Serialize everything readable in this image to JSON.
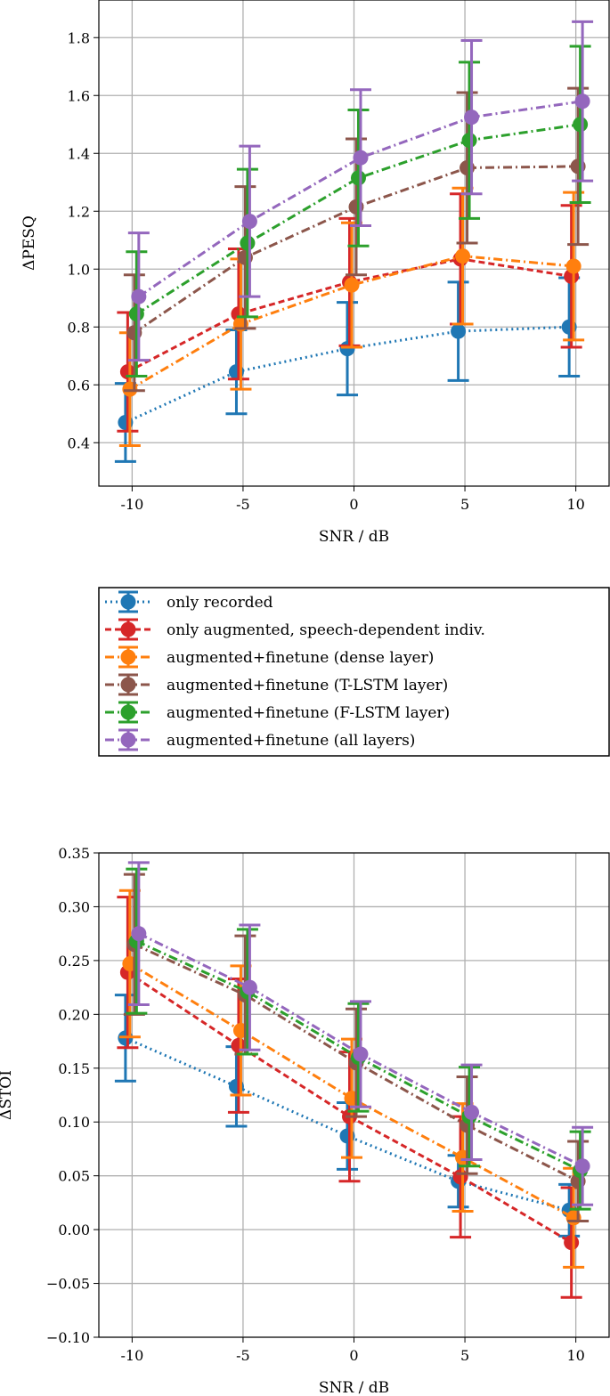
{
  "legend": {
    "entries": [
      "only recorded",
      "only augmented, speech-dependent indiv.",
      "augmented+finetune (dense layer)",
      "augmented+finetune (T-LSTM layer)",
      "augmented+finetune (F-LSTM layer)",
      "augmented+finetune (all layers)"
    ]
  },
  "series_styles": [
    {
      "color": "#1f77b4",
      "dash": "dotted"
    },
    {
      "color": "#d62728",
      "dash": "dashed"
    },
    {
      "color": "#ff7f0e",
      "dash": "dashdot"
    },
    {
      "color": "#8c564b",
      "dash": "dashdot"
    },
    {
      "color": "#2ca02c",
      "dash": "dashdot"
    },
    {
      "color": "#9467bd",
      "dash": "dashdot"
    }
  ],
  "chart_data": [
    {
      "type": "line",
      "xlabel": "SNR / dB",
      "ylabel": "ΔPESQ",
      "x": [
        -10,
        -5,
        0,
        5,
        10
      ],
      "xticks": [
        "-10",
        "-5",
        "0",
        "5",
        "10"
      ],
      "yticks": [
        "0.4",
        "0.6",
        "0.8",
        "1.0",
        "1.2",
        "1.4",
        "1.6",
        "1.8"
      ],
      "ylim": [
        0.25,
        1.93
      ],
      "grid": true,
      "series": [
        {
          "name": "only recorded",
          "values": [
            0.47,
            0.645,
            0.725,
            0.785,
            0.8
          ],
          "errors": [
            0.135,
            0.145,
            0.16,
            0.17,
            0.17
          ]
        },
        {
          "name": "only augmented, speech-dependent indiv.",
          "values": [
            0.645,
            0.845,
            0.955,
            1.035,
            0.975
          ],
          "errors": [
            0.205,
            0.225,
            0.22,
            0.225,
            0.245
          ]
        },
        {
          "name": "augmented+finetune (dense layer)",
          "values": [
            0.585,
            0.81,
            0.945,
            1.045,
            1.01
          ],
          "errors": [
            0.195,
            0.225,
            0.215,
            0.235,
            0.255
          ]
        },
        {
          "name": "augmented+finetune (T-LSTM layer)",
          "values": [
            0.78,
            1.04,
            1.215,
            1.35,
            1.355
          ],
          "errors": [
            0.2,
            0.245,
            0.235,
            0.26,
            0.27
          ]
        },
        {
          "name": "augmented+finetune (F-LSTM layer)",
          "values": [
            0.845,
            1.09,
            1.315,
            1.445,
            1.5
          ],
          "errors": [
            0.215,
            0.255,
            0.235,
            0.27,
            0.27
          ]
        },
        {
          "name": "augmented+finetune (all layers)",
          "values": [
            0.905,
            1.165,
            1.385,
            1.525,
            1.58
          ],
          "errors": [
            0.22,
            0.26,
            0.235,
            0.265,
            0.275
          ]
        }
      ]
    },
    {
      "type": "line",
      "xlabel": "SNR / dB",
      "ylabel": "ΔSTOI",
      "x": [
        -10,
        -5,
        0,
        5,
        10
      ],
      "xticks": [
        "-10",
        "-5",
        "0",
        "5",
        "10"
      ],
      "yticks": [
        "−0.10",
        "−0.05",
        "0.00",
        "0.05",
        "0.10",
        "0.15",
        "0.20",
        "0.25",
        "0.30",
        "0.35"
      ],
      "ylim": [
        -0.1,
        0.35
      ],
      "grid": true,
      "series": [
        {
          "name": "only recorded",
          "values": [
            0.178,
            0.133,
            0.087,
            0.045,
            0.018
          ],
          "errors": [
            0.04,
            0.037,
            0.031,
            0.024,
            0.024
          ]
        },
        {
          "name": "only augmented, speech-dependent indiv.",
          "values": [
            0.239,
            0.171,
            0.105,
            0.049,
            -0.012
          ],
          "errors": [
            0.07,
            0.062,
            0.06,
            0.056,
            0.051
          ]
        },
        {
          "name": "augmented+finetune (dense layer)",
          "values": [
            0.247,
            0.185,
            0.122,
            0.067,
            0.011
          ],
          "errors": [
            0.068,
            0.06,
            0.055,
            0.05,
            0.046
          ]
        },
        {
          "name": "augmented+finetune (T-LSTM layer)",
          "values": [
            0.265,
            0.218,
            0.155,
            0.097,
            0.045
          ],
          "errors": [
            0.065,
            0.055,
            0.05,
            0.045,
            0.037
          ]
        },
        {
          "name": "augmented+finetune (F-LSTM layer)",
          "values": [
            0.268,
            0.221,
            0.16,
            0.105,
            0.055
          ],
          "errors": [
            0.067,
            0.058,
            0.05,
            0.046,
            0.036
          ]
        },
        {
          "name": "augmented+finetune (all layers)",
          "values": [
            0.275,
            0.225,
            0.163,
            0.109,
            0.059
          ],
          "errors": [
            0.066,
            0.058,
            0.049,
            0.044,
            0.036
          ]
        }
      ]
    }
  ]
}
